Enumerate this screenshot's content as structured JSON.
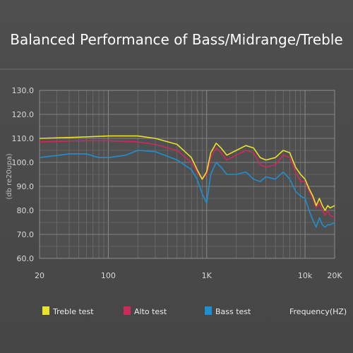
{
  "chart_data": {
    "type": "line",
    "title": "Balanced Performance of Bass/Midrange/Treble",
    "ylabel": "(db re20upa)",
    "xlabel_legend": "Frequency(HZ)",
    "xscale": "log",
    "xlim": [
      20,
      20000
    ],
    "ylim": [
      60,
      130
    ],
    "grid": true,
    "legend_placement": "bottom",
    "x_ticks": [
      {
        "value": 20,
        "label": "20"
      },
      {
        "value": 100,
        "label": "100"
      },
      {
        "value": 1000,
        "label": "1K"
      },
      {
        "value": 10000,
        "label": "10k"
      },
      {
        "value": 20000,
        "label": "20K"
      }
    ],
    "y_ticks": [
      {
        "value": 130,
        "label": "130.0"
      },
      {
        "value": 120,
        "label": "120.0"
      },
      {
        "value": 110,
        "label": "110.0"
      },
      {
        "value": 100,
        "label": "100.0"
      },
      {
        "value": 90,
        "label": "90.0"
      },
      {
        "value": 80,
        "label": "80.0"
      },
      {
        "value": 70,
        "label": "70.0"
      },
      {
        "value": 60,
        "label": "60.0"
      }
    ],
    "series": [
      {
        "name": "Treble test",
        "color": "#e8e22a",
        "points": [
          [
            20,
            110
          ],
          [
            50,
            110.5
          ],
          [
            100,
            111
          ],
          [
            200,
            111
          ],
          [
            300,
            110
          ],
          [
            500,
            107.5
          ],
          [
            700,
            102
          ],
          [
            800,
            97
          ],
          [
            900,
            93
          ],
          [
            1000,
            96
          ],
          [
            1100,
            104
          ],
          [
            1250,
            108
          ],
          [
            1400,
            106
          ],
          [
            1600,
            103
          ],
          [
            2000,
            105
          ],
          [
            2500,
            107
          ],
          [
            3000,
            106
          ],
          [
            3500,
            102
          ],
          [
            4000,
            101
          ],
          [
            5000,
            102
          ],
          [
            6000,
            105
          ],
          [
            7000,
            104
          ],
          [
            8000,
            98
          ],
          [
            9000,
            95
          ],
          [
            10000,
            93
          ],
          [
            11000,
            89
          ],
          [
            12000,
            86
          ],
          [
            13000,
            82
          ],
          [
            14000,
            85
          ],
          [
            15000,
            82
          ],
          [
            16000,
            80
          ],
          [
            17000,
            82
          ],
          [
            18000,
            81
          ],
          [
            20000,
            82
          ]
        ]
      },
      {
        "name": "Alto test",
        "color": "#cc2a5a",
        "points": [
          [
            20,
            108.5
          ],
          [
            50,
            109
          ],
          [
            100,
            109
          ],
          [
            200,
            108.5
          ],
          [
            300,
            107.5
          ],
          [
            500,
            105
          ],
          [
            700,
            100
          ],
          [
            800,
            96
          ],
          [
            900,
            93
          ],
          [
            1000,
            95
          ],
          [
            1100,
            102
          ],
          [
            1250,
            106
          ],
          [
            1400,
            104
          ],
          [
            1600,
            101
          ],
          [
            2000,
            103
          ],
          [
            2500,
            105
          ],
          [
            3000,
            104
          ],
          [
            3500,
            99
          ],
          [
            4000,
            98
          ],
          [
            5000,
            99
          ],
          [
            6000,
            103
          ],
          [
            7000,
            102
          ],
          [
            8000,
            96
          ],
          [
            9000,
            92
          ],
          [
            10000,
            92
          ],
          [
            11000,
            88
          ],
          [
            12000,
            85
          ],
          [
            13000,
            81
          ],
          [
            14000,
            83
          ],
          [
            15000,
            80
          ],
          [
            16000,
            78
          ],
          [
            17000,
            80
          ],
          [
            18000,
            78
          ],
          [
            20000,
            77
          ]
        ]
      },
      {
        "name": "Bass test",
        "color": "#1e8fcf",
        "points": [
          [
            20,
            102
          ],
          [
            40,
            103.5
          ],
          [
            60,
            103.5
          ],
          [
            80,
            102
          ],
          [
            100,
            102
          ],
          [
            150,
            103
          ],
          [
            200,
            105
          ],
          [
            300,
            104.5
          ],
          [
            500,
            101
          ],
          [
            700,
            97
          ],
          [
            800,
            93
          ],
          [
            900,
            87
          ],
          [
            1000,
            83
          ],
          [
            1100,
            95
          ],
          [
            1250,
            100
          ],
          [
            1400,
            98
          ],
          [
            1600,
            95
          ],
          [
            2000,
            95
          ],
          [
            2500,
            96
          ],
          [
            3000,
            93
          ],
          [
            3500,
            92
          ],
          [
            4000,
            94
          ],
          [
            5000,
            93
          ],
          [
            6000,
            96
          ],
          [
            7000,
            93
          ],
          [
            8000,
            88
          ],
          [
            9000,
            86
          ],
          [
            10000,
            85
          ],
          [
            11000,
            80
          ],
          [
            12000,
            76
          ],
          [
            13000,
            73
          ],
          [
            14000,
            77
          ],
          [
            15000,
            74
          ],
          [
            16000,
            73
          ],
          [
            17000,
            74
          ],
          [
            18000,
            74
          ],
          [
            20000,
            75
          ]
        ]
      }
    ]
  }
}
